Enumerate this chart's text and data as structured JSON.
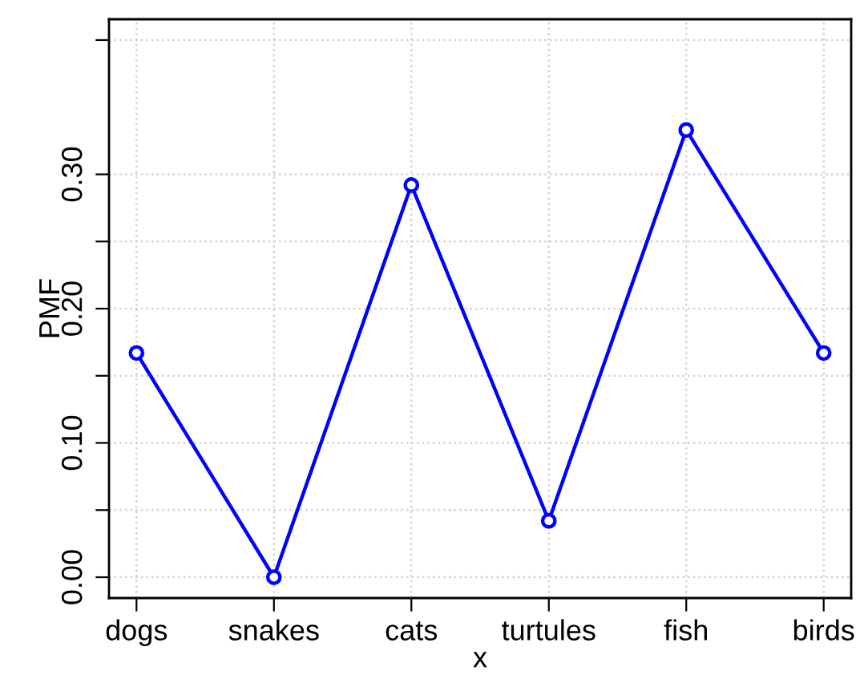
{
  "chart_data": {
    "type": "line",
    "xlabel": "x",
    "ylabel": "PMF",
    "categories": [
      "dogs",
      "snakes",
      "cats",
      "turtules",
      "fish",
      "birds"
    ],
    "series": [
      {
        "color": "#0000ff",
        "values": [
          0.167,
          0.0,
          0.292,
          0.042,
          0.333,
          0.167
        ]
      }
    ],
    "ylim": [
      -0.0155,
      0.4155
    ],
    "yticks": [
      {
        "value": 0.0,
        "label": "0.00"
      },
      {
        "value": 0.05,
        "label": null
      },
      {
        "value": 0.1,
        "label": "0.10"
      },
      {
        "value": 0.15,
        "label": null
      },
      {
        "value": 0.2,
        "label": "0.20"
      },
      {
        "value": 0.25,
        "label": null
      },
      {
        "value": 0.3,
        "label": "0.30"
      },
      {
        "value": 0.4,
        "label": null
      }
    ],
    "grid": true,
    "marker": "circle",
    "line_style": "solid",
    "legend": false
  }
}
